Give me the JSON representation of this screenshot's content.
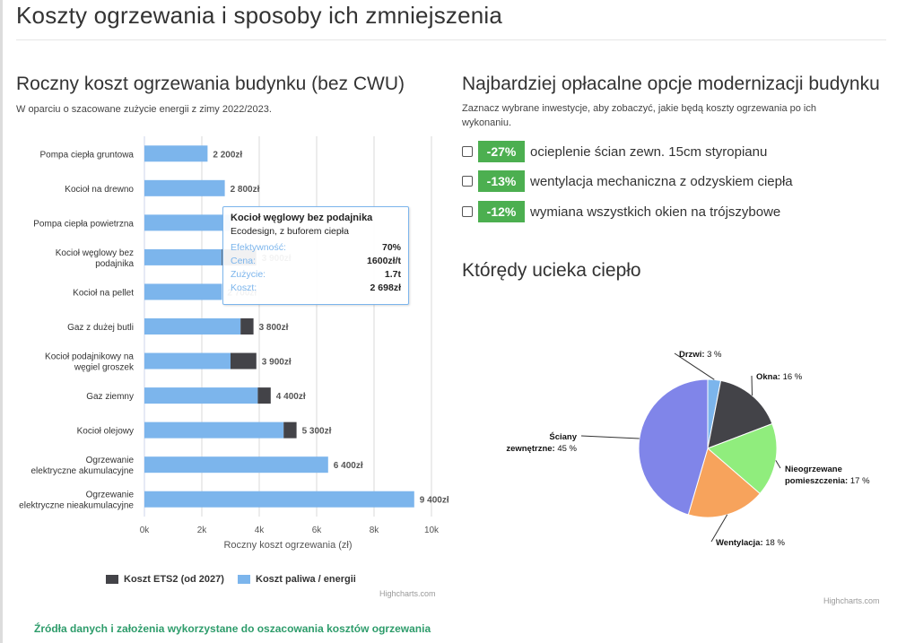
{
  "page": {
    "title": "Koszty ogrzewania i sposoby ich zmniejszenia"
  },
  "cost_section": {
    "heading": "Roczny koszt ogrzewania budynku (bez CWU)",
    "subtitle": "W oparciu o szacowane zużycie energii z zimy 2022/2023."
  },
  "tooltip": {
    "title": "Kocioł węglowy bez podajnika",
    "subtitle": "Ecodesign, z buforem ciepła",
    "rows": [
      {
        "label": "Efektywność:",
        "value": "70%"
      },
      {
        "label": "Cena:",
        "value": "1600zł/t"
      },
      {
        "label": "Zużycie:",
        "value": "1.7t"
      },
      {
        "label": "Koszt:",
        "value": "2 698zł"
      }
    ]
  },
  "legend": {
    "ets2": "Koszt ETS2 (od 2027)",
    "fuel": "Koszt paliwa / energii"
  },
  "credits": "Highcharts.com",
  "sources_link": "Źródła danych i założenia wykorzystane do oszacowania kosztów ogrzewania",
  "modernization": {
    "heading": "Najbardziej opłacalne opcje modernizacji budynku",
    "subtitle": "Zaznacz wybrane inwestycje, aby zobaczyć, jakie będą koszty ogrzewania po ich wykonaniu.",
    "options": [
      {
        "pct": "-27%",
        "label": "ocieplenie ścian zewn. 15cm styropianu",
        "checked": false
      },
      {
        "pct": "-13%",
        "label": "wentylacja mechaniczna z odzyskiem ciepła",
        "checked": false
      },
      {
        "pct": "-12%",
        "label": "wymiana wszystkich okien na trójszybowe",
        "checked": false
      }
    ]
  },
  "heat_loss": {
    "heading": "Którędy ucieka ciepło"
  },
  "colors": {
    "fuel": "#7cb5ec",
    "ets2": "#434348",
    "accent": "#4caf50",
    "link": "#2e9c6b"
  },
  "chart_data": [
    {
      "type": "bar",
      "stacked": true,
      "categories": [
        "Pompa ciepła gruntowa",
        "Kocioł na drewno",
        "Pompa ciepła powietrzna",
        "Kocioł węglowy bez podajnika",
        "Kocioł na pellet",
        "Gaz z dużej butli",
        "Kocioł podajnikowy na węgiel groszek",
        "Gaz ziemny",
        "Kocioł olejowy",
        "Ogrzewanie elektryczne akumulacyjne",
        "Ogrzewanie elektryczne nieakumulacyjne"
      ],
      "series": [
        {
          "name": "Koszt paliwa / energii",
          "color": "#7cb5ec",
          "values": [
            2200,
            2800,
            3000,
            2698,
            2700,
            3350,
            3000,
            3950,
            4850,
            6400,
            9400
          ]
        },
        {
          "name": "Koszt ETS2 (od 2027)",
          "color": "#434348",
          "values": [
            0,
            0,
            0,
            1200,
            0,
            450,
            900,
            450,
            450,
            0,
            0
          ]
        }
      ],
      "total_labels": [
        "2 200zł",
        "2 800zł",
        "",
        "3 900zł",
        "2 700zł",
        "3 800zł",
        "3 900zł",
        "4 400zł",
        "5 300zł",
        "6 400zł",
        "9 400zł"
      ],
      "xlabel": "Roczny koszt ogrzewania (zł)",
      "tick_values": [
        0,
        2000,
        4000,
        6000,
        8000,
        10000
      ],
      "tick_labels": [
        "0k",
        "2k",
        "4k",
        "6k",
        "8k",
        "10k"
      ],
      "xlim": [
        0,
        10000
      ],
      "grid": true
    },
    {
      "type": "pie",
      "slices": [
        {
          "name": "Drzwi",
          "value": 3,
          "color": "#7cb5ec"
        },
        {
          "name": "Okna",
          "value": 16,
          "color": "#434348"
        },
        {
          "name": "Nieogrzewane pomieszczenia",
          "value": 17,
          "color": "#90ed7d"
        },
        {
          "name": "Wentylacja",
          "value": 18,
          "color": "#f7a35c"
        },
        {
          "name": "Ściany zewnętrzne",
          "value": 45,
          "color": "#8085e9"
        }
      ],
      "unit": "%"
    }
  ]
}
